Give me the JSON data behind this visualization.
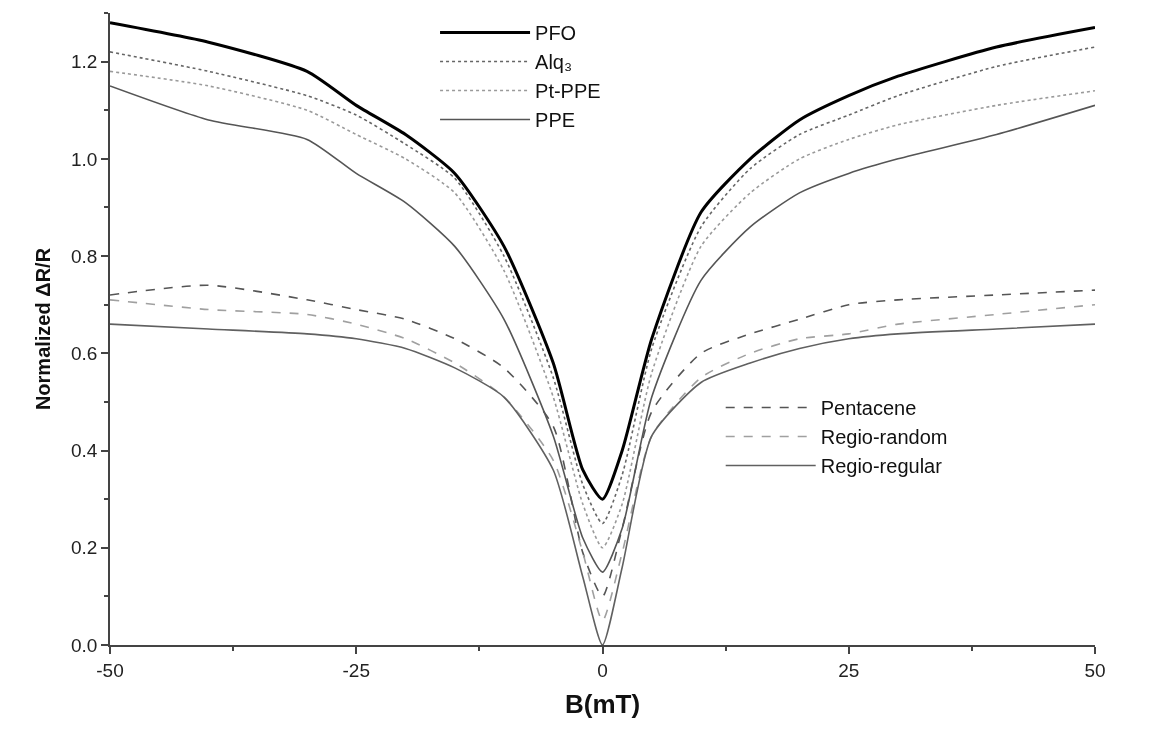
{
  "chart_data": {
    "type": "line",
    "xlabel": "B(mT)",
    "ylabel": "Normalized ΔR/R",
    "x": [
      -50,
      -40,
      -30,
      -25,
      -20,
      -15,
      -10,
      -5,
      -2,
      0,
      2,
      5,
      10,
      15,
      20,
      25,
      30,
      40,
      50
    ],
    "xlim": [
      -50,
      50
    ],
    "xticks": [
      -50,
      -25,
      0,
      25,
      50
    ],
    "ylim": [
      0,
      1.3
    ],
    "yticks": [
      {
        "value": 0,
        "label": "0.0"
      },
      0.2,
      0.4,
      0.6,
      0.8,
      {
        "value": 1,
        "label": "1.0"
      },
      1.2
    ],
    "legend": "top",
    "marker": "none",
    "series": [
      {
        "name": "PFO",
        "color": "#000000",
        "line_style": "solid",
        "values": [
          1.28,
          1.24,
          1.18,
          1.11,
          1.05,
          0.97,
          0.82,
          0.58,
          0.36,
          0.3,
          0.4,
          0.63,
          0.89,
          1.0,
          1.08,
          1.13,
          1.17,
          1.23,
          1.27
        ]
      },
      {
        "name": "Alq₃",
        "color": "#666666",
        "line_style": "dotted",
        "values": [
          1.22,
          1.18,
          1.13,
          1.09,
          1.03,
          0.96,
          0.8,
          0.55,
          0.33,
          0.25,
          0.35,
          0.61,
          0.86,
          0.98,
          1.05,
          1.09,
          1.13,
          1.19,
          1.23
        ]
      },
      {
        "name": "Pt-PPE",
        "color": "#9a9a9a",
        "line_style": "dotted",
        "values": [
          1.18,
          1.15,
          1.1,
          1.05,
          1.0,
          0.93,
          0.77,
          0.51,
          0.29,
          0.2,
          0.29,
          0.56,
          0.82,
          0.93,
          1.0,
          1.04,
          1.07,
          1.11,
          1.14
        ]
      },
      {
        "name": "PPE",
        "color": "#555555",
        "line_style": "solid",
        "values": [
          1.15,
          1.08,
          1.04,
          0.97,
          0.91,
          0.82,
          0.67,
          0.43,
          0.22,
          0.15,
          0.24,
          0.51,
          0.75,
          0.86,
          0.93,
          0.97,
          1.0,
          1.05,
          1.11
        ]
      },
      {
        "name": "Pentacene",
        "color": "#555555",
        "line_style": "dashed",
        "values": [
          0.72,
          0.74,
          0.71,
          0.69,
          0.67,
          0.63,
          0.57,
          0.45,
          0.19,
          0.1,
          0.24,
          0.48,
          0.6,
          0.64,
          0.67,
          0.7,
          0.71,
          0.72,
          0.73
        ]
      },
      {
        "name": "Regio-random",
        "color": "#a0a0a0",
        "line_style": "dashed",
        "values": [
          0.71,
          0.69,
          0.68,
          0.66,
          0.63,
          0.58,
          0.51,
          0.38,
          0.19,
          0.05,
          0.19,
          0.43,
          0.55,
          0.6,
          0.63,
          0.64,
          0.66,
          0.68,
          0.7
        ]
      },
      {
        "name": "Regio-regular",
        "color": "#606060",
        "line_style": "solid",
        "values": [
          0.66,
          0.65,
          0.64,
          0.63,
          0.61,
          0.57,
          0.51,
          0.36,
          0.14,
          0.0,
          0.16,
          0.43,
          0.54,
          0.58,
          0.61,
          0.63,
          0.64,
          0.65,
          0.66
        ]
      }
    ]
  }
}
